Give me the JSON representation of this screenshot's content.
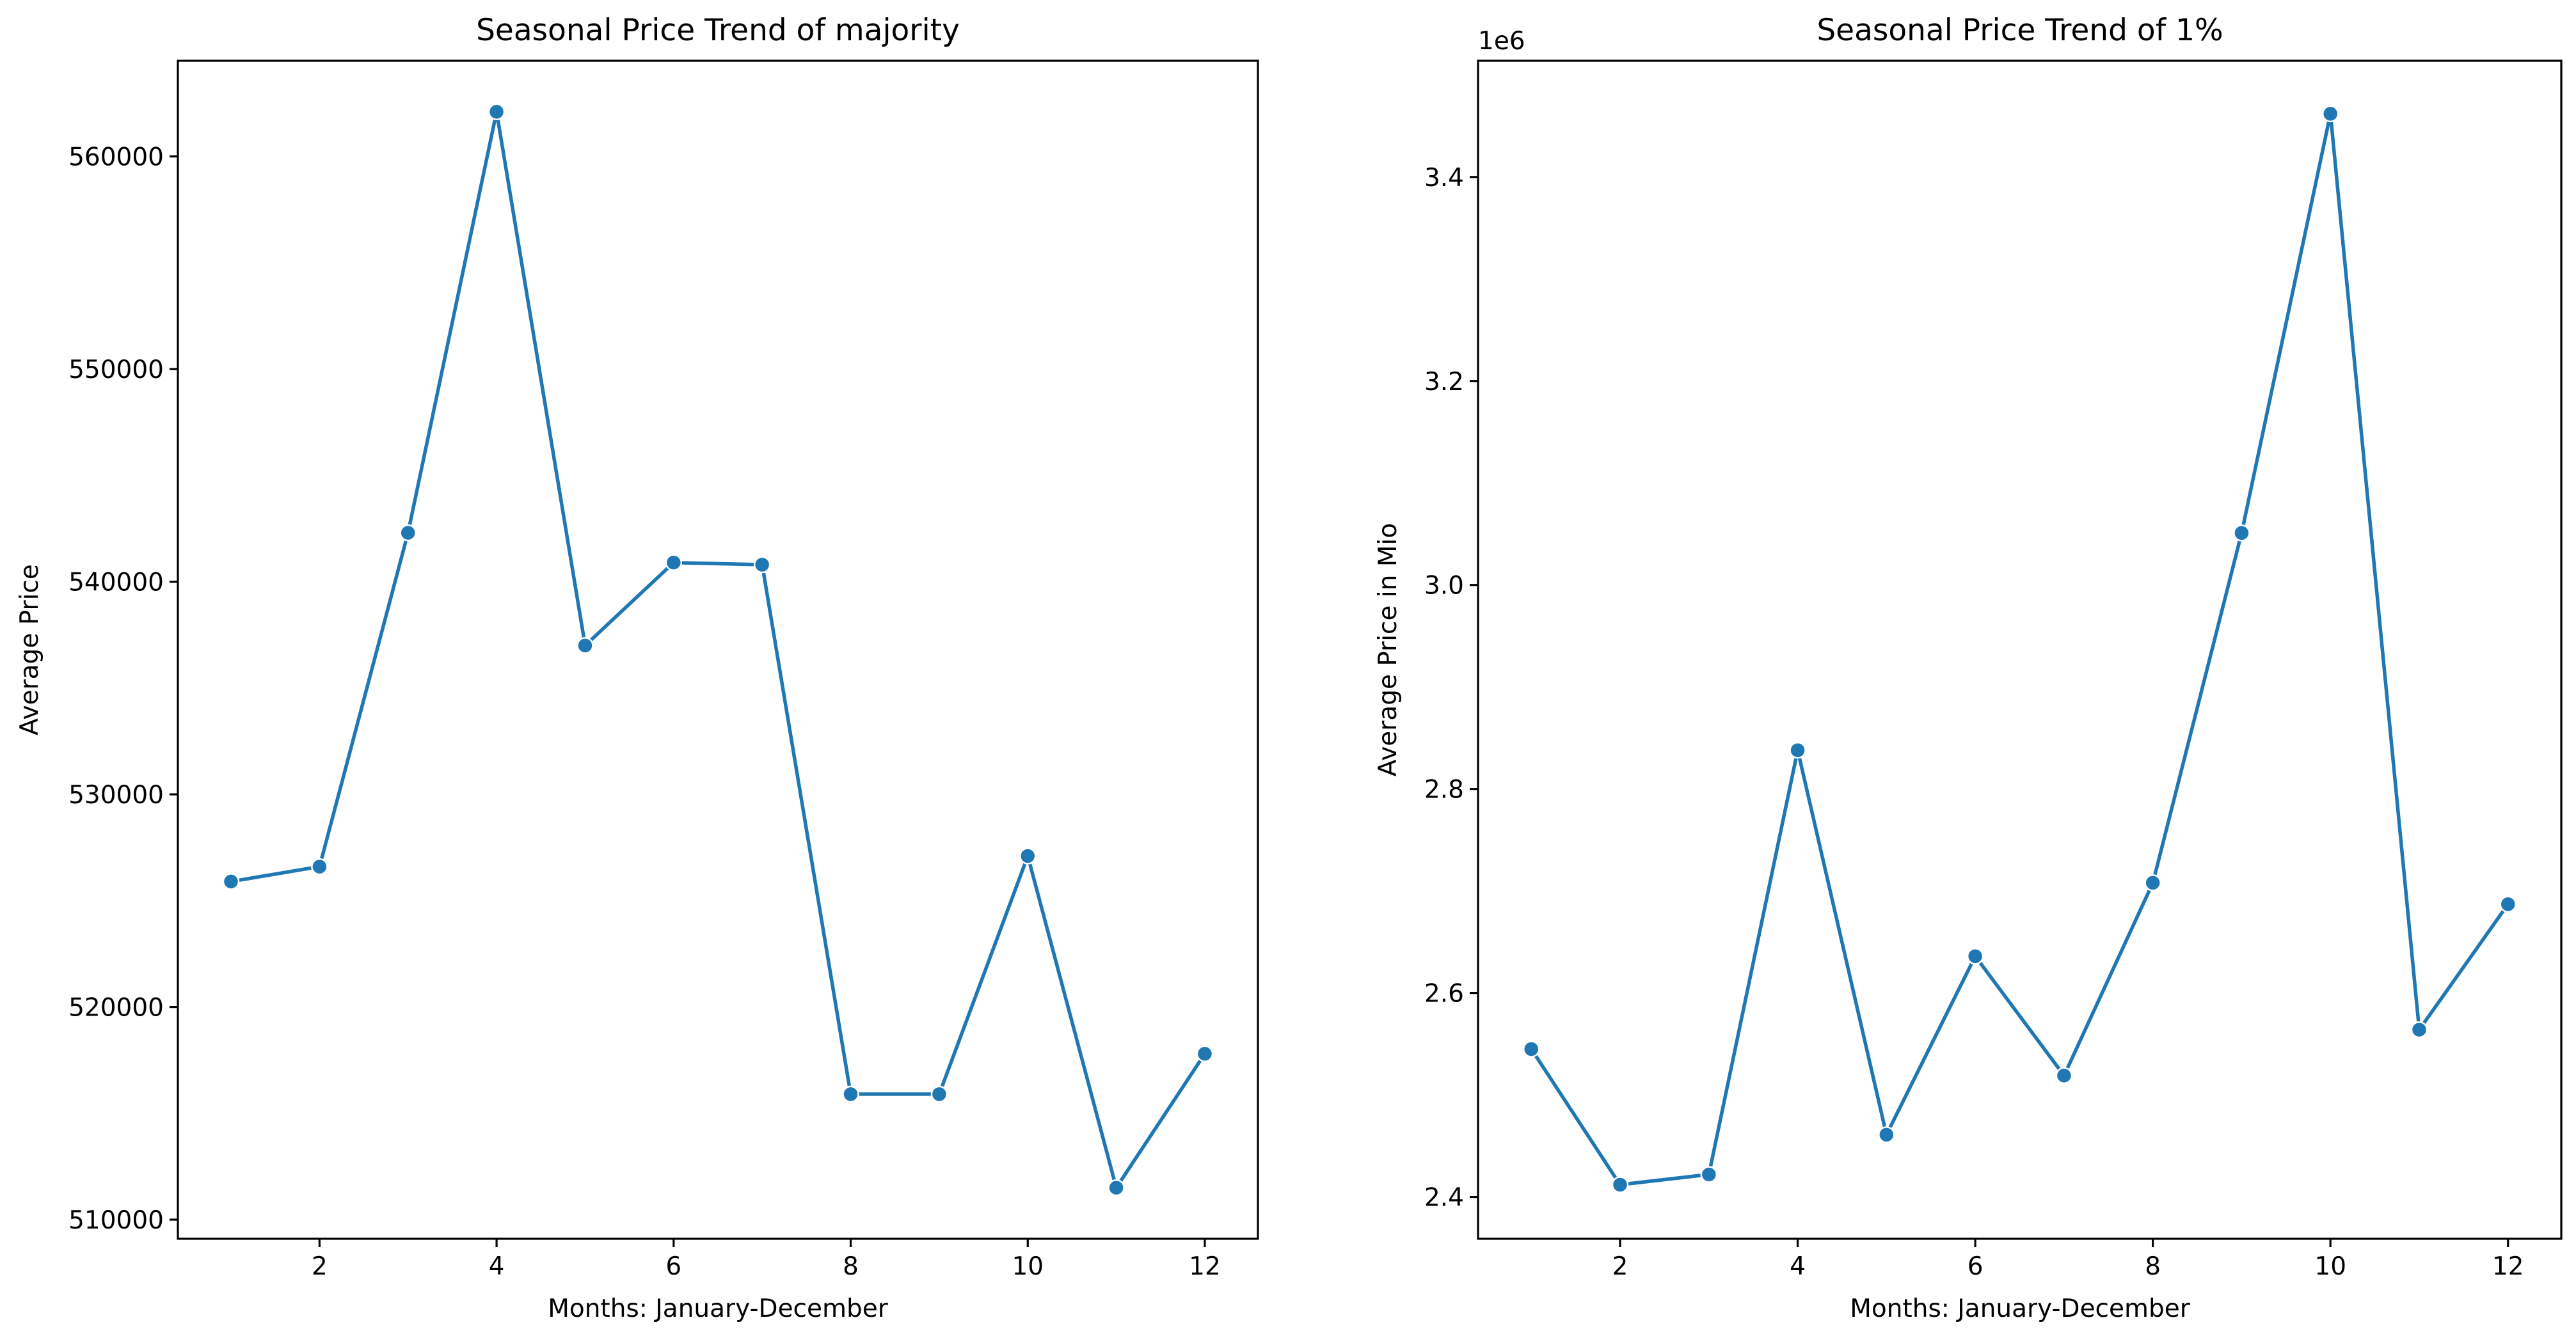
{
  "chart_data": [
    {
      "type": "line",
      "title": "Seasonal Price Trend of majority",
      "xlabel": "Months: January-December",
      "ylabel": "Average Price",
      "x": [
        1,
        2,
        3,
        4,
        5,
        6,
        7,
        8,
        9,
        10,
        11,
        12
      ],
      "series": [
        {
          "name": "Average Price",
          "values": [
            525900,
            526600,
            542300,
            562100,
            537000,
            540900,
            540800,
            515900,
            515900,
            527100,
            511500,
            517800
          ]
        }
      ],
      "xlim": [
        0.4,
        12.6
      ],
      "ylim": [
        509100,
        564500
      ],
      "xticks": [
        2,
        4,
        6,
        8,
        10,
        12
      ],
      "xtick_labels": [
        "2",
        "4",
        "6",
        "8",
        "10",
        "12"
      ],
      "yticks": [
        510000,
        520000,
        530000,
        540000,
        550000,
        560000
      ],
      "ytick_labels": [
        "510000",
        "520000",
        "530000",
        "540000",
        "550000",
        "560000"
      ],
      "offset_text": "",
      "grid": false,
      "line_color": "#1f77b4",
      "marker": "circle"
    },
    {
      "type": "line",
      "title": "Seasonal Price Trend of 1%",
      "xlabel": "Months: January-December",
      "ylabel": "Average Price in Mio",
      "x": [
        1,
        2,
        3,
        4,
        5,
        6,
        7,
        8,
        9,
        10,
        11,
        12
      ],
      "series": [
        {
          "name": "Average Price in Mio",
          "values": [
            2545000,
            2412000,
            2422000,
            2838000,
            2461000,
            2636000,
            2519000,
            2708000,
            3051000,
            3462000,
            2564000,
            2687000
          ]
        }
      ],
      "xlim": [
        0.4,
        12.6
      ],
      "ylim": [
        2359000,
        3514000
      ],
      "xticks": [
        2,
        4,
        6,
        8,
        10,
        12
      ],
      "xtick_labels": [
        "2",
        "4",
        "6",
        "8",
        "10",
        "12"
      ],
      "yticks": [
        2400000,
        2600000,
        2800000,
        3000000,
        3200000,
        3400000
      ],
      "ytick_labels": [
        "2.4",
        "2.6",
        "2.8",
        "3.0",
        "3.2",
        "3.4"
      ],
      "offset_text": "1e6",
      "grid": false,
      "line_color": "#1f77b4",
      "marker": "circle"
    }
  ]
}
